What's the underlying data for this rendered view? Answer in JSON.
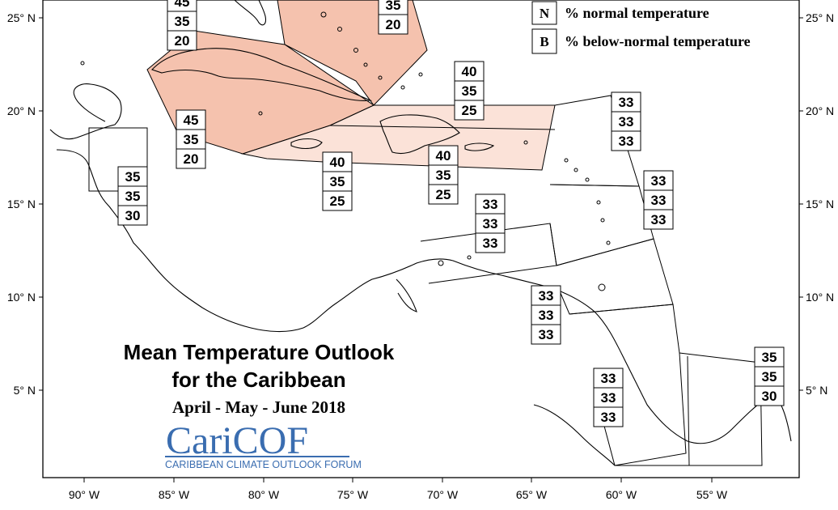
{
  "title_line1": "Mean Temperature Outlook",
  "title_line2": "for the Caribbean",
  "period": "April - May - June 2018",
  "logo": {
    "name": "CariCOF",
    "tagline": "CARIBBEAN CLIMATE OUTLOOK FORUM"
  },
  "legend": [
    {
      "key": "N",
      "text": "% normal temperature"
    },
    {
      "key": "B",
      "text": "% below-normal temperature"
    }
  ],
  "lat_ticks": [
    "25° N",
    "20° N",
    "15° N",
    "10° N",
    "5° N"
  ],
  "lon_ticks": [
    "90° W",
    "85° W",
    "80° W",
    "75° W",
    "70° W",
    "65° W",
    "60° W",
    "55° W"
  ],
  "colors": {
    "above_45": "#f5c2ae",
    "above_40": "#fbe2d8",
    "line": "#000000"
  },
  "regions": [
    {
      "id": "bahamas-north",
      "values": [
        "45",
        "35",
        "20"
      ]
    },
    {
      "id": "bahamas-south",
      "values": [
        "35",
        "20"
      ]
    },
    {
      "id": "cuba",
      "values": [
        "45",
        "35",
        "20"
      ]
    },
    {
      "id": "belize",
      "values": [
        "35",
        "35",
        "30"
      ]
    },
    {
      "id": "jamaica",
      "values": [
        "40",
        "35",
        "25"
      ]
    },
    {
      "id": "hispaniola",
      "values": [
        "40",
        "35",
        "25"
      ]
    },
    {
      "id": "puerto-rico",
      "values": [
        "40",
        "35",
        "25"
      ]
    },
    {
      "id": "leeward-islands",
      "values": [
        "33",
        "33",
        "33"
      ]
    },
    {
      "id": "windward-islands",
      "values": [
        "33",
        "33",
        "33"
      ]
    },
    {
      "id": "caribbean-sea",
      "values": [
        "33",
        "33",
        "33"
      ]
    },
    {
      "id": "trinidad",
      "values": [
        "33",
        "33",
        "33"
      ]
    },
    {
      "id": "guyana",
      "values": [
        "33",
        "33",
        "33"
      ]
    },
    {
      "id": "french-guiana",
      "values": [
        "35",
        "35",
        "30"
      ]
    }
  ]
}
